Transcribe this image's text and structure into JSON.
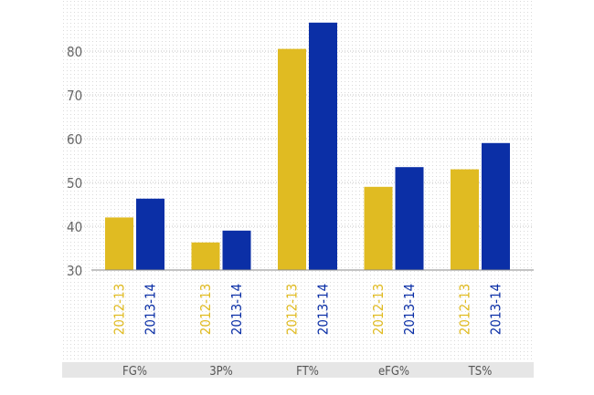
{
  "chart_data": {
    "type": "bar",
    "title": "",
    "xlabel": "",
    "ylabel": "",
    "categories": [
      "FG%",
      "3P%",
      "FT%",
      "eFG%",
      "TS%"
    ],
    "series": [
      {
        "name": "2012-13",
        "color": "#e0bb22",
        "values": [
          42.0,
          36.3,
          80.5,
          49.0,
          53.0
        ]
      },
      {
        "name": "2013-14",
        "color": "#0b2fa6",
        "values": [
          46.3,
          39.0,
          86.5,
          53.5,
          59.0
        ]
      }
    ],
    "yticks": [
      30,
      40,
      50,
      60,
      70,
      80
    ],
    "ylim": [
      30,
      87
    ],
    "grid": true
  }
}
